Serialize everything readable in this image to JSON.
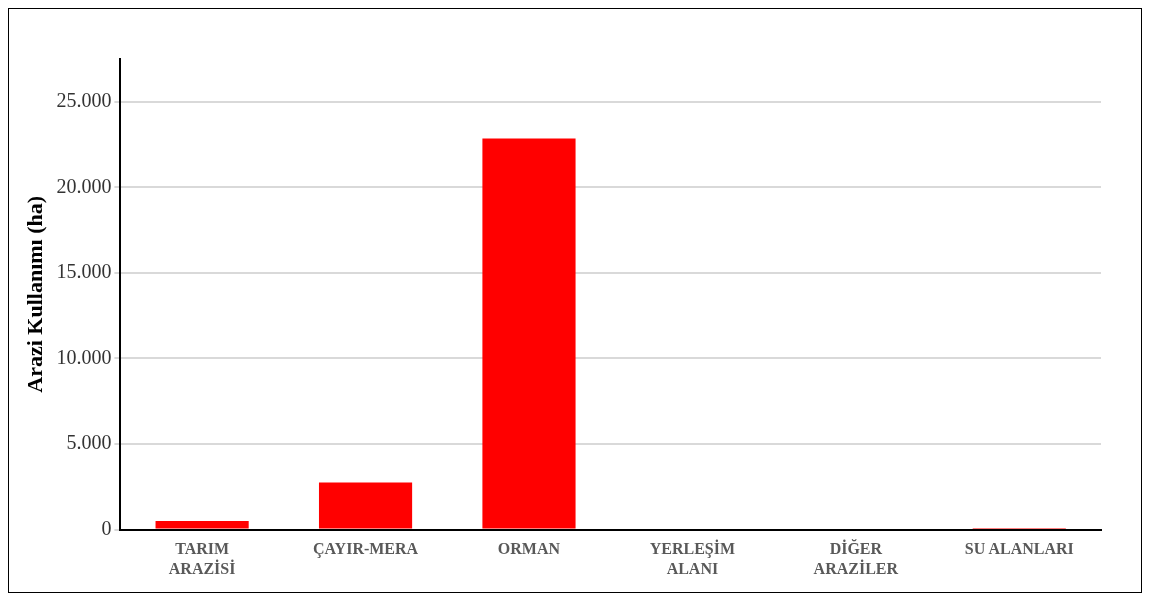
{
  "chart_data": {
    "type": "bar",
    "ylabel": "Arazi Kullanımı (ha)",
    "categories": [
      "TARIM\nARAZİSİ",
      "ÇAYIR-MERA",
      "ORMAN",
      "YERLEŞİM\nALANI",
      "DİĞER\nARAZİLER",
      "SU ALANLARI"
    ],
    "values": [
      500,
      2750,
      22850,
      null,
      null,
      100
    ],
    "color": "#ff0000",
    "ylim": [
      0,
      27500
    ],
    "yticks": [
      {
        "value": 0,
        "label": "0"
      },
      {
        "value": 5000,
        "label": "5.000"
      },
      {
        "value": 10000,
        "label": "10.000"
      },
      {
        "value": 15000,
        "label": "15.000"
      },
      {
        "value": 20000,
        "label": "20.000"
      },
      {
        "value": 25000,
        "label": "25.000"
      }
    ],
    "grid": "y"
  }
}
